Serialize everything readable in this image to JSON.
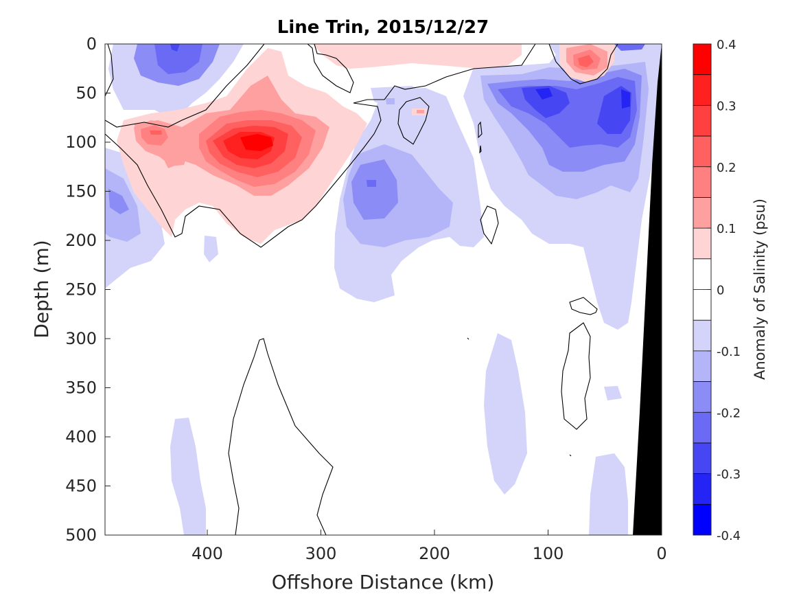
{
  "chart_data": {
    "type": "contour",
    "title": "Line Trin, 2015/12/27",
    "xlabel": "Offshore Distance (km)",
    "ylabel": "Depth (m)",
    "xlim": [
      490,
      0
    ],
    "ylim": [
      0,
      500
    ],
    "x_reversed": true,
    "y_reversed": true,
    "x_ticks": [
      "400",
      "300",
      "200",
      "100",
      "0"
    ],
    "x_tick_values": [
      400,
      300,
      200,
      100,
      0
    ],
    "y_ticks": [
      "0",
      "50",
      "100",
      "150",
      "200",
      "250",
      "300",
      "350",
      "400",
      "450",
      "500"
    ],
    "y_tick_values": [
      0,
      50,
      100,
      150,
      200,
      250,
      300,
      350,
      400,
      450,
      500
    ],
    "colorbar": {
      "label": "Anomaly of Salinity (psu)",
      "range": [
        -0.4,
        0.4
      ],
      "tick_labels": [
        "0.4",
        "0.3",
        "0.2",
        "0.1",
        "0",
        "-0.1",
        "-0.2",
        "-0.3",
        "-0.4"
      ],
      "tick_values": [
        0.4,
        0.3,
        0.2,
        0.1,
        0,
        -0.1,
        -0.2,
        -0.3,
        -0.4
      ],
      "levels": [
        {
          "lo": 0.35,
          "hi": 0.4,
          "color": "#ff0000"
        },
        {
          "lo": 0.3,
          "hi": 0.35,
          "color": "#ff2020"
        },
        {
          "lo": 0.25,
          "hi": 0.3,
          "color": "#ff4040"
        },
        {
          "lo": 0.2,
          "hi": 0.25,
          "color": "#ff6060"
        },
        {
          "lo": 0.15,
          "hi": 0.2,
          "color": "#ff8080"
        },
        {
          "lo": 0.1,
          "hi": 0.15,
          "color": "#ffa0a0"
        },
        {
          "lo": 0.05,
          "hi": 0.1,
          "color": "#ffd4d4"
        },
        {
          "lo": 0.0,
          "hi": 0.05,
          "color": "#ffffff"
        },
        {
          "lo": -0.05,
          "hi": 0.0,
          "color": "#ffffff"
        },
        {
          "lo": -0.1,
          "hi": -0.05,
          "color": "#d4d4fa"
        },
        {
          "lo": -0.15,
          "hi": -0.1,
          "color": "#b4b4f8"
        },
        {
          "lo": -0.2,
          "hi": -0.15,
          "color": "#8c8cf6"
        },
        {
          "lo": -0.25,
          "hi": -0.2,
          "color": "#6a6af4"
        },
        {
          "lo": -0.3,
          "hi": -0.25,
          "color": "#4646f2"
        },
        {
          "lo": -0.35,
          "hi": -0.3,
          "color": "#2424f4"
        },
        {
          "lo": -0.4,
          "hi": -0.35,
          "color": "#0000ff"
        }
      ]
    },
    "anomaly_features": [
      {
        "id": "pos-core",
        "x": 350,
        "y": 100,
        "value": 0.38
      },
      {
        "id": "pos-left",
        "x": 445,
        "y": 90,
        "value": 0.2
      },
      {
        "id": "pos-surface-right",
        "x": 70,
        "y": 20,
        "value": 0.23
      },
      {
        "id": "pos-surface-mid",
        "x": 220,
        "y": 5,
        "value": 0.08
      },
      {
        "id": "neg-surface-left",
        "x": 420,
        "y": 15,
        "value": -0.27
      },
      {
        "id": "neg-core-east",
        "x": 90,
        "y": 60,
        "value": -0.33
      },
      {
        "id": "neg-sub-east",
        "x": 40,
        "y": 55,
        "value": -0.3
      },
      {
        "id": "neg-mid-west",
        "x": 250,
        "y": 150,
        "value": -0.2
      },
      {
        "id": "neg-left-edge",
        "x": 470,
        "y": 165,
        "value": -0.2
      },
      {
        "id": "neg-deep-east",
        "x": 140,
        "y": 400,
        "value": -0.07
      },
      {
        "id": "neg-deep-west",
        "x": 420,
        "y": 450,
        "value": -0.07
      }
    ],
    "zero_contour": "black line separating positive and negative anomalies",
    "bathymetry": "black slope at the shore (0 km) from 0 m to 500 m"
  }
}
